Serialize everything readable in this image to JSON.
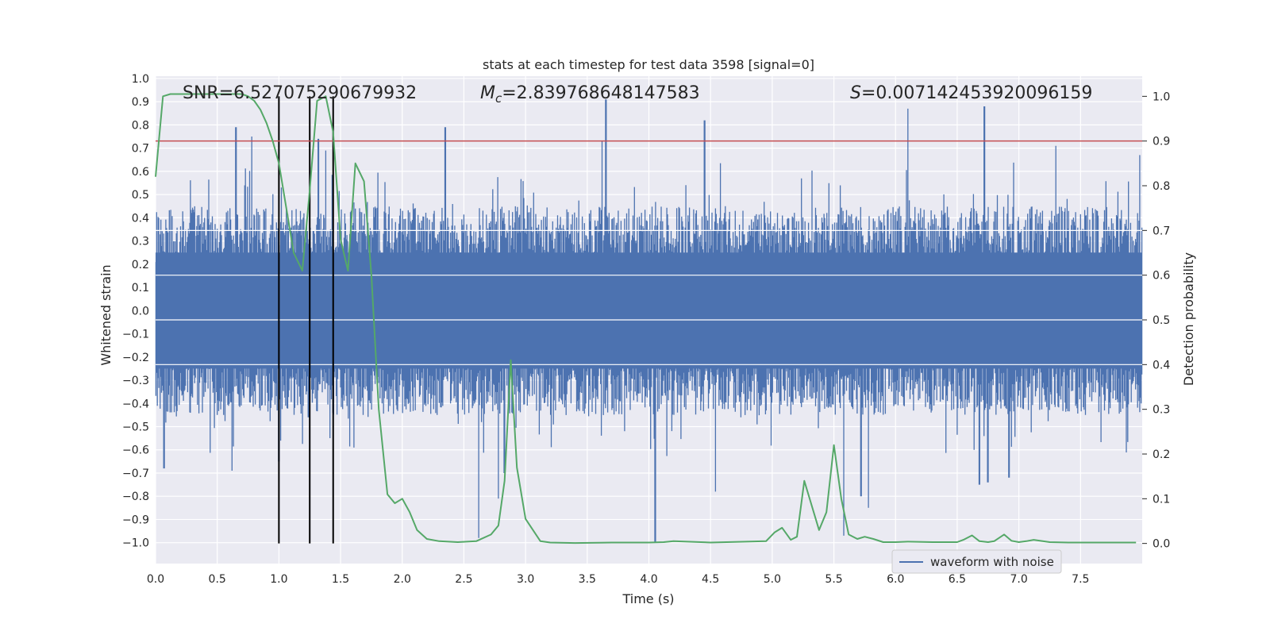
{
  "chart_data": {
    "type": "line",
    "title": "stats at each timestep for test data 3598 [signal=0]",
    "xlabel": "Time (s)",
    "ylabel_left": "Whitened strain",
    "ylabel_right": "Detection probability",
    "xlim": [
      0.0,
      8.0
    ],
    "ylim_left": [
      -1.09,
      1.01
    ],
    "ylim_right": [
      -0.045,
      1.045
    ],
    "x_ticks": [
      0.0,
      0.5,
      1.0,
      1.5,
      2.0,
      2.5,
      3.0,
      3.5,
      4.0,
      4.5,
      5.0,
      5.5,
      6.0,
      6.5,
      7.0,
      7.5
    ],
    "x_tick_labels": [
      "0.0",
      "0.5",
      "1.0",
      "1.5",
      "2.0",
      "2.5",
      "3.0",
      "3.5",
      "4.0",
      "4.5",
      "5.0",
      "5.5",
      "6.0",
      "6.5",
      "7.0",
      "7.5"
    ],
    "y_left_ticks": [
      1.0,
      0.9,
      0.8,
      0.7,
      0.6,
      0.5,
      0.4,
      0.3,
      0.2,
      0.1,
      0.0,
      -0.1,
      -0.2,
      -0.3,
      -0.4,
      -0.5,
      -0.6,
      -0.7,
      -0.8,
      -0.9,
      -1.0
    ],
    "y_left_tick_labels": [
      "1.0",
      "0.9",
      "0.8",
      "0.7",
      "0.6",
      "0.5",
      "0.4",
      "0.3",
      "0.2",
      "0.1",
      "0.0",
      "−0.1",
      "−0.2",
      "−0.3",
      "−0.4",
      "−0.5",
      "−0.6",
      "−0.7",
      "−0.8",
      "−0.9",
      "−1.0"
    ],
    "y_right_ticks": [
      1.0,
      0.9,
      0.8,
      0.7,
      0.6,
      0.5,
      0.4,
      0.3,
      0.2,
      0.1,
      0.0
    ],
    "y_right_tick_labels": [
      "1.0",
      "0.9",
      "0.8",
      "0.7",
      "0.6",
      "0.5",
      "0.4",
      "0.3",
      "0.2",
      "0.1",
      "0.0"
    ],
    "annotations": {
      "snr": "SNR=6.527075290679932",
      "mc_prefix": "M",
      "mc_sub": "c",
      "mc_value": "=2.839768648147583",
      "s_prefix": "S",
      "s_value": "=0.007142453920096159"
    },
    "legend": {
      "label": "waveform with noise",
      "position": "lower-right"
    },
    "vertical_markers": [
      1.0,
      1.25,
      1.44
    ],
    "threshold": {
      "value": 0.9,
      "axis": "right",
      "color": "#c44e52"
    },
    "strain_envelope": {
      "series": "waveform with noise",
      "color": "#4c72b0",
      "typical_upper": 0.45,
      "typical_lower": -0.45,
      "peaks": [
        {
          "t": 0.65,
          "v": 0.79
        },
        {
          "t": 0.78,
          "v": 0.75
        },
        {
          "t": 1.02,
          "v": 0.53
        },
        {
          "t": 1.32,
          "v": 0.74
        },
        {
          "t": 1.38,
          "v": 0.69
        },
        {
          "t": 2.35,
          "v": 0.79
        },
        {
          "t": 3.62,
          "v": 0.73
        },
        {
          "t": 3.65,
          "v": 0.91
        },
        {
          "t": 4.45,
          "v": 0.82
        },
        {
          "t": 6.1,
          "v": 0.87
        },
        {
          "t": 6.72,
          "v": 0.88
        },
        {
          "t": 7.3,
          "v": 0.71
        },
        {
          "t": 7.98,
          "v": 0.67
        }
      ],
      "troughs": [
        {
          "t": 0.07,
          "v": -0.68
        },
        {
          "t": 0.62,
          "v": -0.69
        },
        {
          "t": 1.0,
          "v": -0.65
        },
        {
          "t": 1.24,
          "v": -0.46
        },
        {
          "t": 2.62,
          "v": -0.98
        },
        {
          "t": 2.78,
          "v": -0.81
        },
        {
          "t": 2.83,
          "v": -0.7
        },
        {
          "t": 4.05,
          "v": -1.0
        },
        {
          "t": 4.54,
          "v": -0.78
        },
        {
          "t": 5.58,
          "v": -0.97
        },
        {
          "t": 5.72,
          "v": -0.8
        },
        {
          "t": 5.78,
          "v": -0.85
        },
        {
          "t": 6.68,
          "v": -0.75
        },
        {
          "t": 6.75,
          "v": -0.74
        },
        {
          "t": 6.92,
          "v": -0.72
        }
      ]
    },
    "detection_probability": {
      "color": "#55a868",
      "x": [
        0.0,
        0.06,
        0.12,
        0.2,
        0.3,
        0.4,
        0.5,
        0.6,
        0.7,
        0.75,
        0.8,
        0.85,
        0.9,
        0.95,
        1.0,
        1.06,
        1.12,
        1.19,
        1.25,
        1.31,
        1.38,
        1.44,
        1.5,
        1.56,
        1.62,
        1.69,
        1.75,
        1.81,
        1.88,
        1.94,
        2.0,
        2.06,
        2.12,
        2.2,
        2.3,
        2.45,
        2.6,
        2.72,
        2.78,
        2.83,
        2.88,
        2.93,
        3.0,
        3.12,
        3.2,
        3.4,
        3.7,
        4.0,
        4.12,
        4.2,
        4.5,
        4.95,
        5.02,
        5.08,
        5.15,
        5.2,
        5.26,
        5.32,
        5.38,
        5.44,
        5.5,
        5.56,
        5.62,
        5.69,
        5.75,
        5.82,
        5.9,
        6.0,
        6.1,
        6.3,
        6.5,
        6.55,
        6.62,
        6.68,
        6.75,
        6.8,
        6.88,
        6.94,
        7.0,
        7.06,
        7.12,
        7.25,
        7.4,
        7.6,
        7.8,
        7.95
      ],
      "y": [
        0.82,
        1.0,
        1.005,
        1.005,
        1.005,
        1.005,
        1.005,
        1.005,
        1.005,
        1.0,
        0.99,
        0.97,
        0.94,
        0.9,
        0.85,
        0.75,
        0.65,
        0.61,
        0.79,
        0.99,
        1.0,
        0.92,
        0.68,
        0.61,
        0.85,
        0.81,
        0.6,
        0.3,
        0.11,
        0.09,
        0.1,
        0.07,
        0.03,
        0.01,
        0.005,
        0.003,
        0.005,
        0.02,
        0.04,
        0.14,
        0.41,
        0.17,
        0.055,
        0.005,
        0.002,
        0.001,
        0.002,
        0.002,
        0.003,
        0.005,
        0.002,
        0.005,
        0.025,
        0.035,
        0.008,
        0.015,
        0.14,
        0.085,
        0.03,
        0.07,
        0.22,
        0.1,
        0.02,
        0.01,
        0.015,
        0.01,
        0.003,
        0.003,
        0.004,
        0.003,
        0.003,
        0.008,
        0.018,
        0.005,
        0.003,
        0.005,
        0.02,
        0.006,
        0.003,
        0.005,
        0.008,
        0.003,
        0.002,
        0.002,
        0.002,
        0.002
      ]
    }
  }
}
